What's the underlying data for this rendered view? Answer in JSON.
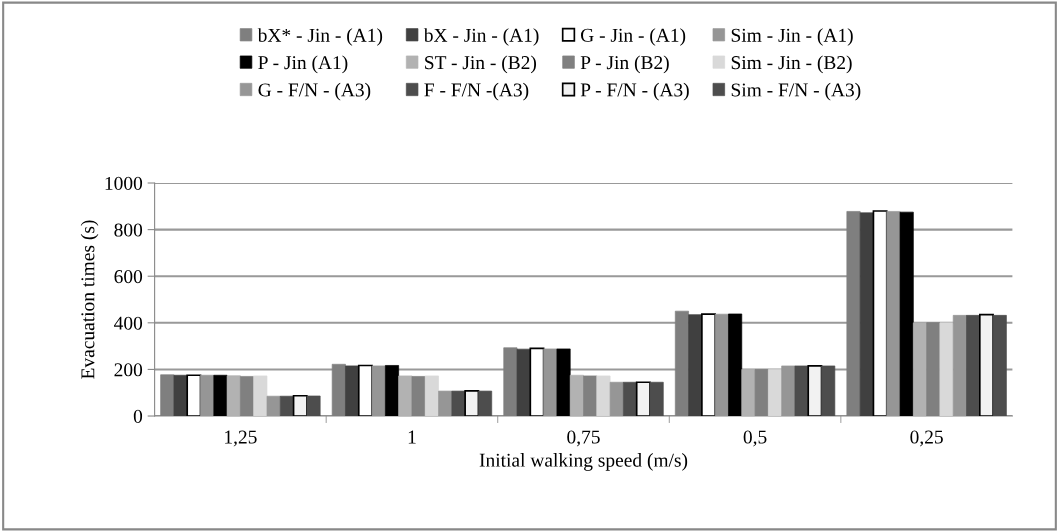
{
  "chart_data": {
    "type": "bar",
    "xlabel": "Initial walking speed (m/s)",
    "ylabel": "Evacuation times (s)",
    "categories": [
      "1,25",
      "1",
      "0,75",
      "0,5",
      "0,25"
    ],
    "series": [
      {
        "name": "bX* - Jin - (A1)",
        "color": "#7f7f7f",
        "values": [
          177,
          222,
          293,
          450,
          878
        ]
      },
      {
        "name": "bX - Jin - (A1)",
        "color": "#404040",
        "values": [
          175,
          215,
          287,
          435,
          872
        ]
      },
      {
        "name": "G - Jin - (A1)",
        "color": "#ffffff",
        "values": [
          175,
          217,
          290,
          437,
          880
        ]
      },
      {
        "name": "Sim - Jin - (A1)",
        "color": "#969696",
        "values": [
          175,
          215,
          288,
          437,
          878
        ]
      },
      {
        "name": "P - Jin (A1)",
        "color": "#000000",
        "values": [
          175,
          217,
          288,
          438,
          875
        ]
      },
      {
        "name": "ST - Jin - (B2)",
        "color": "#b2b2b2",
        "values": [
          173,
          172,
          175,
          200,
          400
        ]
      },
      {
        "name": "P - Jin (B2)",
        "color": "#808080",
        "values": [
          170,
          170,
          172,
          200,
          400
        ]
      },
      {
        "name": "Sim - Jin - (B2)",
        "color": "#d9d9d9",
        "values": [
          172,
          172,
          172,
          200,
          400
        ]
      },
      {
        "name": "G - F/N - (A3)",
        "color": "#969696",
        "values": [
          85,
          107,
          145,
          215,
          432
        ]
      },
      {
        "name": "F - F/N -(A3)",
        "color": "#4d4d4d",
        "values": [
          85,
          107,
          145,
          215,
          432
        ]
      },
      {
        "name": "P - F/N - (A3)",
        "color": "#f2f2f2",
        "values": [
          87,
          108,
          145,
          215,
          435
        ]
      },
      {
        "name": "Sim - F/N - (A3)",
        "color": "#4d4d4d",
        "values": [
          86,
          107,
          145,
          215,
          432
        ]
      }
    ],
    "ylim": [
      0,
      1000
    ],
    "yticks": [
      0,
      200,
      400,
      600,
      800,
      1000
    ],
    "grid": "y",
    "legend": "top"
  }
}
